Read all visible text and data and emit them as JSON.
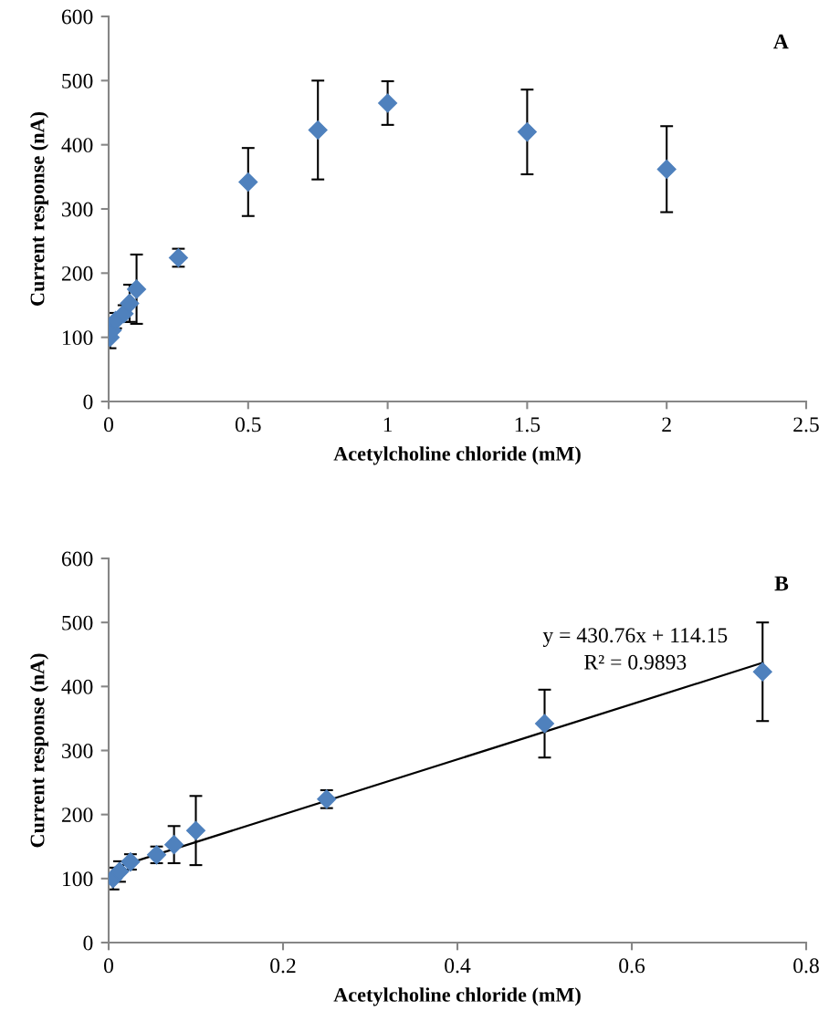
{
  "chart_data": [
    {
      "type": "scatter",
      "title": "A",
      "xlabel": "Acetylcholine chloride (mM)",
      "ylabel": "Current response (nA)",
      "xlim": [
        0,
        2.5
      ],
      "xticks": [
        0,
        0.5,
        1,
        1.5,
        2,
        2.5
      ],
      "ylim": [
        0,
        600
      ],
      "yticks": [
        0,
        100,
        200,
        300,
        400,
        500,
        600
      ],
      "grid": false,
      "legend": false,
      "marker": "diamond",
      "series": [
        {
          "color": "#4f81bd",
          "x": [
            0.005,
            0.0125,
            0.025,
            0.055,
            0.075,
            0.1,
            0.25,
            0.5,
            0.75,
            1,
            1.5,
            2
          ],
          "values": [
            100,
            111,
            126,
            137,
            153,
            175,
            224,
            342,
            423,
            465,
            420,
            362
          ],
          "errors": [
            17,
            null,
            12,
            13,
            29,
            54,
            14,
            53,
            77,
            34,
            66,
            67
          ]
        }
      ]
    },
    {
      "type": "scatter",
      "title": "B",
      "xlabel": "Acetylcholine chloride (mM)",
      "ylabel": "Current response (nA)",
      "xlim": [
        0,
        0.8
      ],
      "xticks": [
        0,
        0.2,
        0.4,
        0.6,
        0.8
      ],
      "ylim": [
        0,
        600
      ],
      "yticks": [
        0,
        100,
        200,
        300,
        400,
        500,
        600
      ],
      "grid": false,
      "legend": false,
      "marker": "diamond",
      "annotations": [
        "y = 430.76x + 114.15",
        "R² = 0.9893"
      ],
      "series": [
        {
          "color": "#4f81bd",
          "x": [
            0.005,
            0.0125,
            0.025,
            0.055,
            0.075,
            0.1,
            0.25,
            0.5,
            0.75
          ],
          "values": [
            100,
            111,
            126,
            137,
            153,
            175,
            224,
            342,
            423
          ],
          "errors": [
            17,
            16,
            12,
            13,
            29,
            54,
            14,
            53,
            77
          ]
        },
        {
          "type": "line",
          "color": "#000000",
          "x": [
            0.005,
            0.75
          ],
          "values": [
            116,
            437
          ],
          "marker": "none",
          "line_style": "solid"
        }
      ]
    }
  ]
}
